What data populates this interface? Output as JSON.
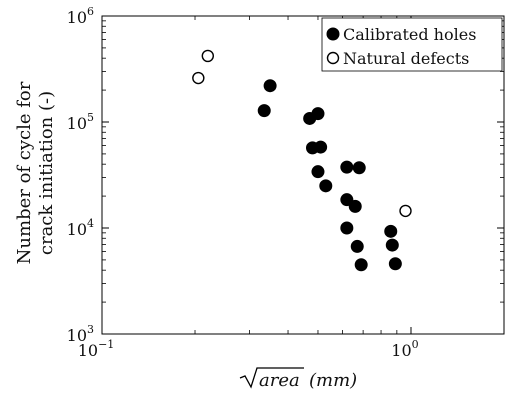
{
  "chart_data": {
    "type": "scatter",
    "x_scale": "log",
    "y_scale": "log",
    "xlim": [
      0.1,
      2
    ],
    "ylim": [
      1000,
      1000000
    ],
    "x_ticks": [
      {
        "value": 0.1,
        "base": "10",
        "exp": "−1"
      },
      {
        "value": 1,
        "base": "10",
        "exp": "0"
      }
    ],
    "y_ticks": [
      {
        "value": 1000,
        "base": "10",
        "exp": "3"
      },
      {
        "value": 10000,
        "base": "10",
        "exp": "4"
      },
      {
        "value": 100000,
        "base": "10",
        "exp": "5"
      },
      {
        "value": 1000000,
        "base": "10",
        "exp": "6"
      }
    ],
    "xlabel": {
      "radicand": "area",
      "unit": "(mm)"
    },
    "ylabel": [
      "Number of cycle for",
      "crack initiation (-)"
    ],
    "legend_position": "top-right",
    "grid": false,
    "series": [
      {
        "name": "Calibrated holes",
        "marker": "filled-circle",
        "color": "#000000",
        "points": [
          [
            0.35,
            220000
          ],
          [
            0.335,
            128000
          ],
          [
            0.47,
            108000
          ],
          [
            0.5,
            120000
          ],
          [
            0.48,
            57000
          ],
          [
            0.51,
            58000
          ],
          [
            0.5,
            34000
          ],
          [
            0.53,
            25000
          ],
          [
            0.62,
            37500
          ],
          [
            0.68,
            37000
          ],
          [
            0.62,
            18500
          ],
          [
            0.66,
            16000
          ],
          [
            0.62,
            10000
          ],
          [
            0.67,
            6700
          ],
          [
            0.69,
            4500
          ],
          [
            0.86,
            9300
          ],
          [
            0.87,
            6900
          ],
          [
            0.89,
            4600
          ]
        ]
      },
      {
        "name": "Natural defects",
        "marker": "open-circle",
        "color": "#000000",
        "points": [
          [
            0.22,
            420000
          ],
          [
            0.205,
            260000
          ],
          [
            0.96,
            14500
          ]
        ]
      }
    ]
  }
}
